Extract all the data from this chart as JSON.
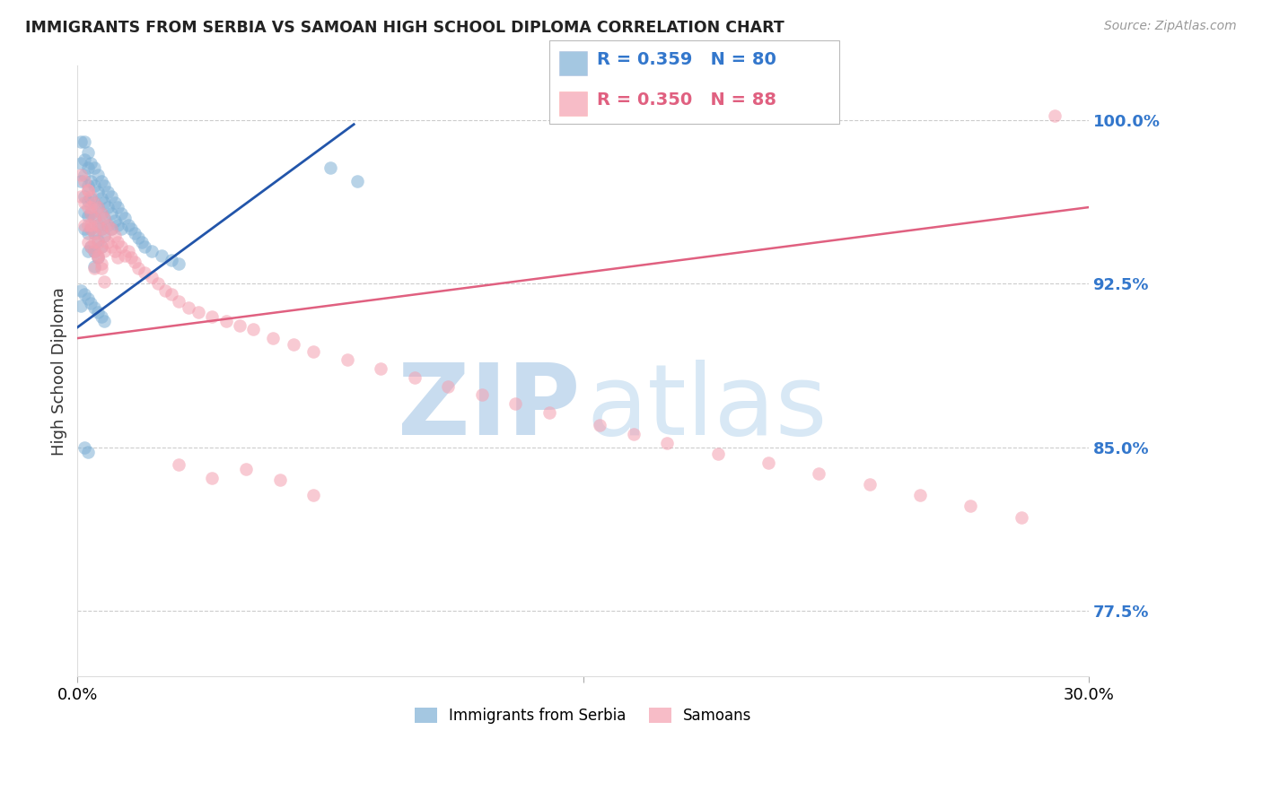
{
  "title": "IMMIGRANTS FROM SERBIA VS SAMOAN HIGH SCHOOL DIPLOMA CORRELATION CHART",
  "source": "Source: ZipAtlas.com",
  "ylabel": "High School Diploma",
  "ytick_labels": [
    "100.0%",
    "92.5%",
    "85.0%",
    "77.5%"
  ],
  "ytick_values": [
    1.0,
    0.925,
    0.85,
    0.775
  ],
  "legend_blue_r": "R = 0.359",
  "legend_blue_n": "N = 80",
  "legend_pink_r": "R = 0.350",
  "legend_pink_n": "N = 88",
  "blue_color": "#7EB0D5",
  "pink_color": "#F4A0B0",
  "blue_line_color": "#2255AA",
  "pink_line_color": "#E06080",
  "xlim": [
    0.0,
    0.3
  ],
  "ylim": [
    0.745,
    1.025
  ],
  "blue_line_x": [
    0.0,
    0.082
  ],
  "blue_line_y": [
    0.905,
    0.998
  ],
  "pink_line_x": [
    0.0,
    0.3
  ],
  "pink_line_y": [
    0.9,
    0.96
  ],
  "blue_x": [
    0.001,
    0.001,
    0.001,
    0.002,
    0.002,
    0.002,
    0.002,
    0.002,
    0.002,
    0.003,
    0.003,
    0.003,
    0.003,
    0.003,
    0.003,
    0.003,
    0.004,
    0.004,
    0.004,
    0.004,
    0.004,
    0.004,
    0.005,
    0.005,
    0.005,
    0.005,
    0.005,
    0.005,
    0.005,
    0.006,
    0.006,
    0.006,
    0.006,
    0.006,
    0.006,
    0.007,
    0.007,
    0.007,
    0.007,
    0.007,
    0.008,
    0.008,
    0.008,
    0.008,
    0.009,
    0.009,
    0.009,
    0.01,
    0.01,
    0.01,
    0.011,
    0.011,
    0.012,
    0.012,
    0.013,
    0.013,
    0.014,
    0.015,
    0.016,
    0.017,
    0.018,
    0.019,
    0.02,
    0.022,
    0.025,
    0.028,
    0.03,
    0.001,
    0.001,
    0.002,
    0.003,
    0.004,
    0.005,
    0.006,
    0.007,
    0.008,
    0.075,
    0.083,
    0.002,
    0.003
  ],
  "blue_y": [
    0.99,
    0.98,
    0.972,
    0.99,
    0.982,
    0.975,
    0.965,
    0.958,
    0.95,
    0.985,
    0.978,
    0.97,
    0.963,
    0.956,
    0.948,
    0.94,
    0.98,
    0.972,
    0.964,
    0.957,
    0.95,
    0.942,
    0.978,
    0.97,
    0.962,
    0.955,
    0.948,
    0.94,
    0.933,
    0.975,
    0.967,
    0.96,
    0.952,
    0.945,
    0.937,
    0.972,
    0.964,
    0.957,
    0.95,
    0.942,
    0.97,
    0.962,
    0.955,
    0.947,
    0.967,
    0.96,
    0.952,
    0.965,
    0.957,
    0.95,
    0.962,
    0.954,
    0.96,
    0.952,
    0.957,
    0.95,
    0.955,
    0.952,
    0.95,
    0.948,
    0.946,
    0.944,
    0.942,
    0.94,
    0.938,
    0.936,
    0.934,
    0.922,
    0.915,
    0.92,
    0.918,
    0.916,
    0.914,
    0.912,
    0.91,
    0.908,
    0.978,
    0.972,
    0.85,
    0.848
  ],
  "pink_x": [
    0.001,
    0.001,
    0.002,
    0.002,
    0.002,
    0.003,
    0.003,
    0.003,
    0.003,
    0.004,
    0.004,
    0.004,
    0.004,
    0.005,
    0.005,
    0.005,
    0.005,
    0.005,
    0.006,
    0.006,
    0.006,
    0.006,
    0.007,
    0.007,
    0.007,
    0.007,
    0.008,
    0.008,
    0.008,
    0.009,
    0.009,
    0.01,
    0.01,
    0.011,
    0.011,
    0.012,
    0.012,
    0.013,
    0.014,
    0.015,
    0.016,
    0.017,
    0.018,
    0.02,
    0.022,
    0.024,
    0.026,
    0.028,
    0.03,
    0.033,
    0.036,
    0.04,
    0.044,
    0.048,
    0.052,
    0.058,
    0.064,
    0.07,
    0.08,
    0.09,
    0.1,
    0.11,
    0.12,
    0.13,
    0.14,
    0.155,
    0.165,
    0.175,
    0.19,
    0.205,
    0.22,
    0.235,
    0.25,
    0.265,
    0.28,
    0.003,
    0.004,
    0.004,
    0.005,
    0.006,
    0.007,
    0.008,
    0.29,
    0.05,
    0.06,
    0.07,
    0.03,
    0.04
  ],
  "pink_y": [
    0.975,
    0.965,
    0.972,
    0.962,
    0.952,
    0.968,
    0.96,
    0.952,
    0.944,
    0.965,
    0.957,
    0.95,
    0.942,
    0.962,
    0.955,
    0.948,
    0.94,
    0.932,
    0.96,
    0.952,
    0.944,
    0.937,
    0.957,
    0.95,
    0.942,
    0.934,
    0.955,
    0.947,
    0.94,
    0.952,
    0.944,
    0.95,
    0.942,
    0.947,
    0.94,
    0.944,
    0.937,
    0.942,
    0.938,
    0.94,
    0.937,
    0.935,
    0.932,
    0.93,
    0.928,
    0.925,
    0.922,
    0.92,
    0.917,
    0.914,
    0.912,
    0.91,
    0.908,
    0.906,
    0.904,
    0.9,
    0.897,
    0.894,
    0.89,
    0.886,
    0.882,
    0.878,
    0.874,
    0.87,
    0.866,
    0.86,
    0.856,
    0.852,
    0.847,
    0.843,
    0.838,
    0.833,
    0.828,
    0.823,
    0.818,
    0.968,
    0.96,
    0.952,
    0.944,
    0.938,
    0.932,
    0.926,
    1.002,
    0.84,
    0.835,
    0.828,
    0.842,
    0.836
  ]
}
